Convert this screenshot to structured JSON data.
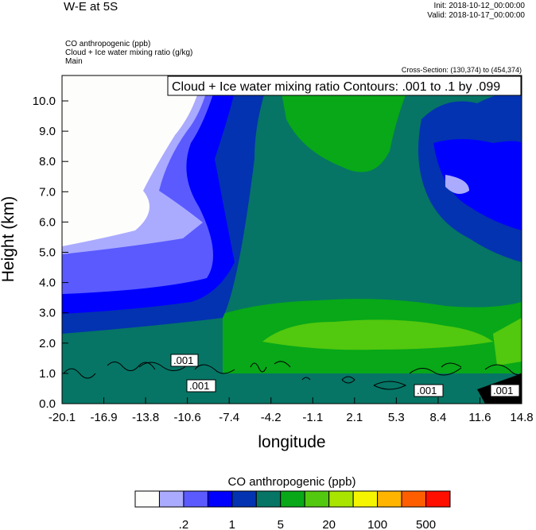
{
  "header": {
    "title": "W-E at 5S",
    "init": "Init: 2018-10-12_00:00:00",
    "valid": "Valid: 2018-10-17_00:00:00",
    "fields": [
      "CO anthropogenic   (ppb)",
      "Cloud + Ice water mixing ratio   (g/kg)",
      "Main"
    ],
    "cross_section": "Cross-Section: (130,374) to (454,374)"
  },
  "chart_data": {
    "type": "heatmap",
    "title": "W-E at 5S",
    "xlabel": "longitude",
    "ylabel": "Height (km)",
    "xlim": [
      -20.1,
      14.8
    ],
    "ylim": [
      0,
      10.8
    ],
    "x_ticks": [
      "-20.1",
      "-16.9",
      "-13.8",
      "-10.6",
      "-7.4",
      "-4.2",
      "-1.1",
      "2.1",
      "5.3",
      "8.4",
      "11.6",
      "14.8"
    ],
    "y_ticks": [
      "0.0",
      "1.0",
      "2.0",
      "3.0",
      "4.0",
      "5.0",
      "6.0",
      "7.0",
      "8.0",
      "9.0",
      "10.0"
    ],
    "contour_info": "Cloud + Ice water mixing ratio Contours: .001 to .1 by .099",
    "contour_labels": [
      ".001",
      ".001",
      ".001",
      ".001"
    ],
    "colorbar": {
      "title": "CO anthropogenic  (ppb)",
      "colors": [
        "#fdfdfb",
        "#aaaaff",
        "#5a5aff",
        "#0000ff",
        "#0333b0",
        "#067565",
        "#08a818",
        "#52c80e",
        "#a8e400",
        "#f5f500",
        "#ffb400",
        "#ff5e00",
        "#ff0f00"
      ],
      "labels": [
        ".2",
        "1",
        "5",
        "20",
        "100",
        "500"
      ]
    }
  }
}
